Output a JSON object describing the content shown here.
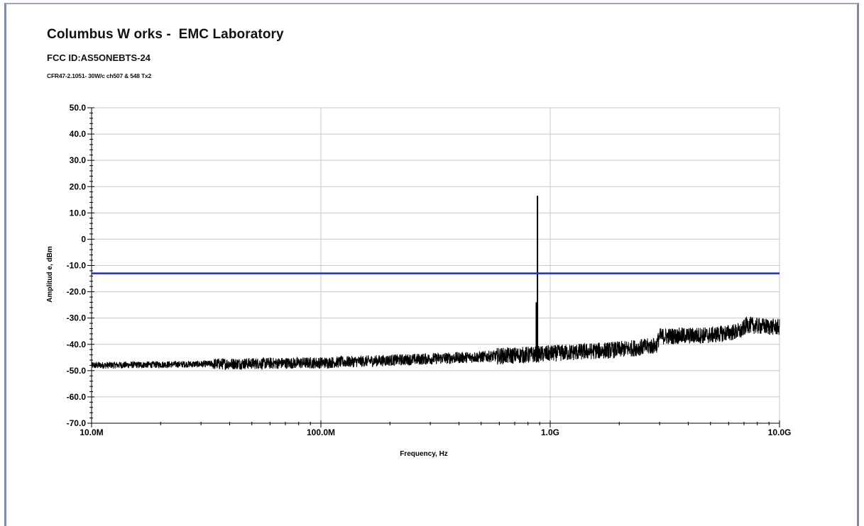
{
  "header": {
    "title": "Columbus W orks -  EMC Laboratory",
    "subtitle": "FCC ID:AS5ONEBTS-24",
    "subtitle2": "CFR47-2.1051- 30W/c ch507 & 548 Tx2"
  },
  "colors": {
    "trace": "#000000",
    "limit_line": "#1f2fbf",
    "grid": "#c8c8c8",
    "frame": "#7f8aa8"
  },
  "chart_data": {
    "type": "line",
    "title": "",
    "xlabel": "Frequency, Hz",
    "ylabel": "Amplitud e, dBm",
    "xscale": "log",
    "xlim": [
      10000000,
      10000000000
    ],
    "ylim": [
      -70,
      50
    ],
    "x_ticks": [
      {
        "value": 10000000,
        "label": "10.0M"
      },
      {
        "value": 100000000,
        "label": "100.0M"
      },
      {
        "value": 1000000000,
        "label": "1.0G"
      },
      {
        "value": 10000000000,
        "label": "10.0G"
      }
    ],
    "y_ticks": [
      {
        "value": 50,
        "label": "50.0"
      },
      {
        "value": 40,
        "label": "40.0"
      },
      {
        "value": 30,
        "label": "30.0"
      },
      {
        "value": 20,
        "label": "20.0"
      },
      {
        "value": 10,
        "label": "10.0"
      },
      {
        "value": 0,
        "label": "0"
      },
      {
        "value": -10,
        "label": "-10.0"
      },
      {
        "value": -20,
        "label": "-20.0"
      },
      {
        "value": -30,
        "label": "-30.0"
      },
      {
        "value": -40,
        "label": "-40.0"
      },
      {
        "value": -50,
        "label": "-50.0"
      },
      {
        "value": -60,
        "label": "-60.0"
      },
      {
        "value": -70,
        "label": "-70.0"
      }
    ],
    "grid": true,
    "limit_line": {
      "value": -13
    },
    "series": [
      {
        "name": "",
        "noise_floor": {
          "x": [
            10000000,
            30000000,
            100000000,
            300000000,
            800000000,
            1000000000,
            2000000000,
            2900000000,
            3000000000,
            5000000000,
            6800000000,
            7200000000,
            8000000000,
            10000000000
          ],
          "y": [
            -48,
            -47.5,
            -47,
            -45.5,
            -44,
            -43.5,
            -42,
            -40.5,
            -37,
            -36.5,
            -35,
            -32.5,
            -33,
            -33.5
          ]
        },
        "peaks": [
          {
            "x": 880000000,
            "y": 16.5
          },
          {
            "x": 870000000,
            "y": -24
          }
        ]
      }
    ]
  }
}
